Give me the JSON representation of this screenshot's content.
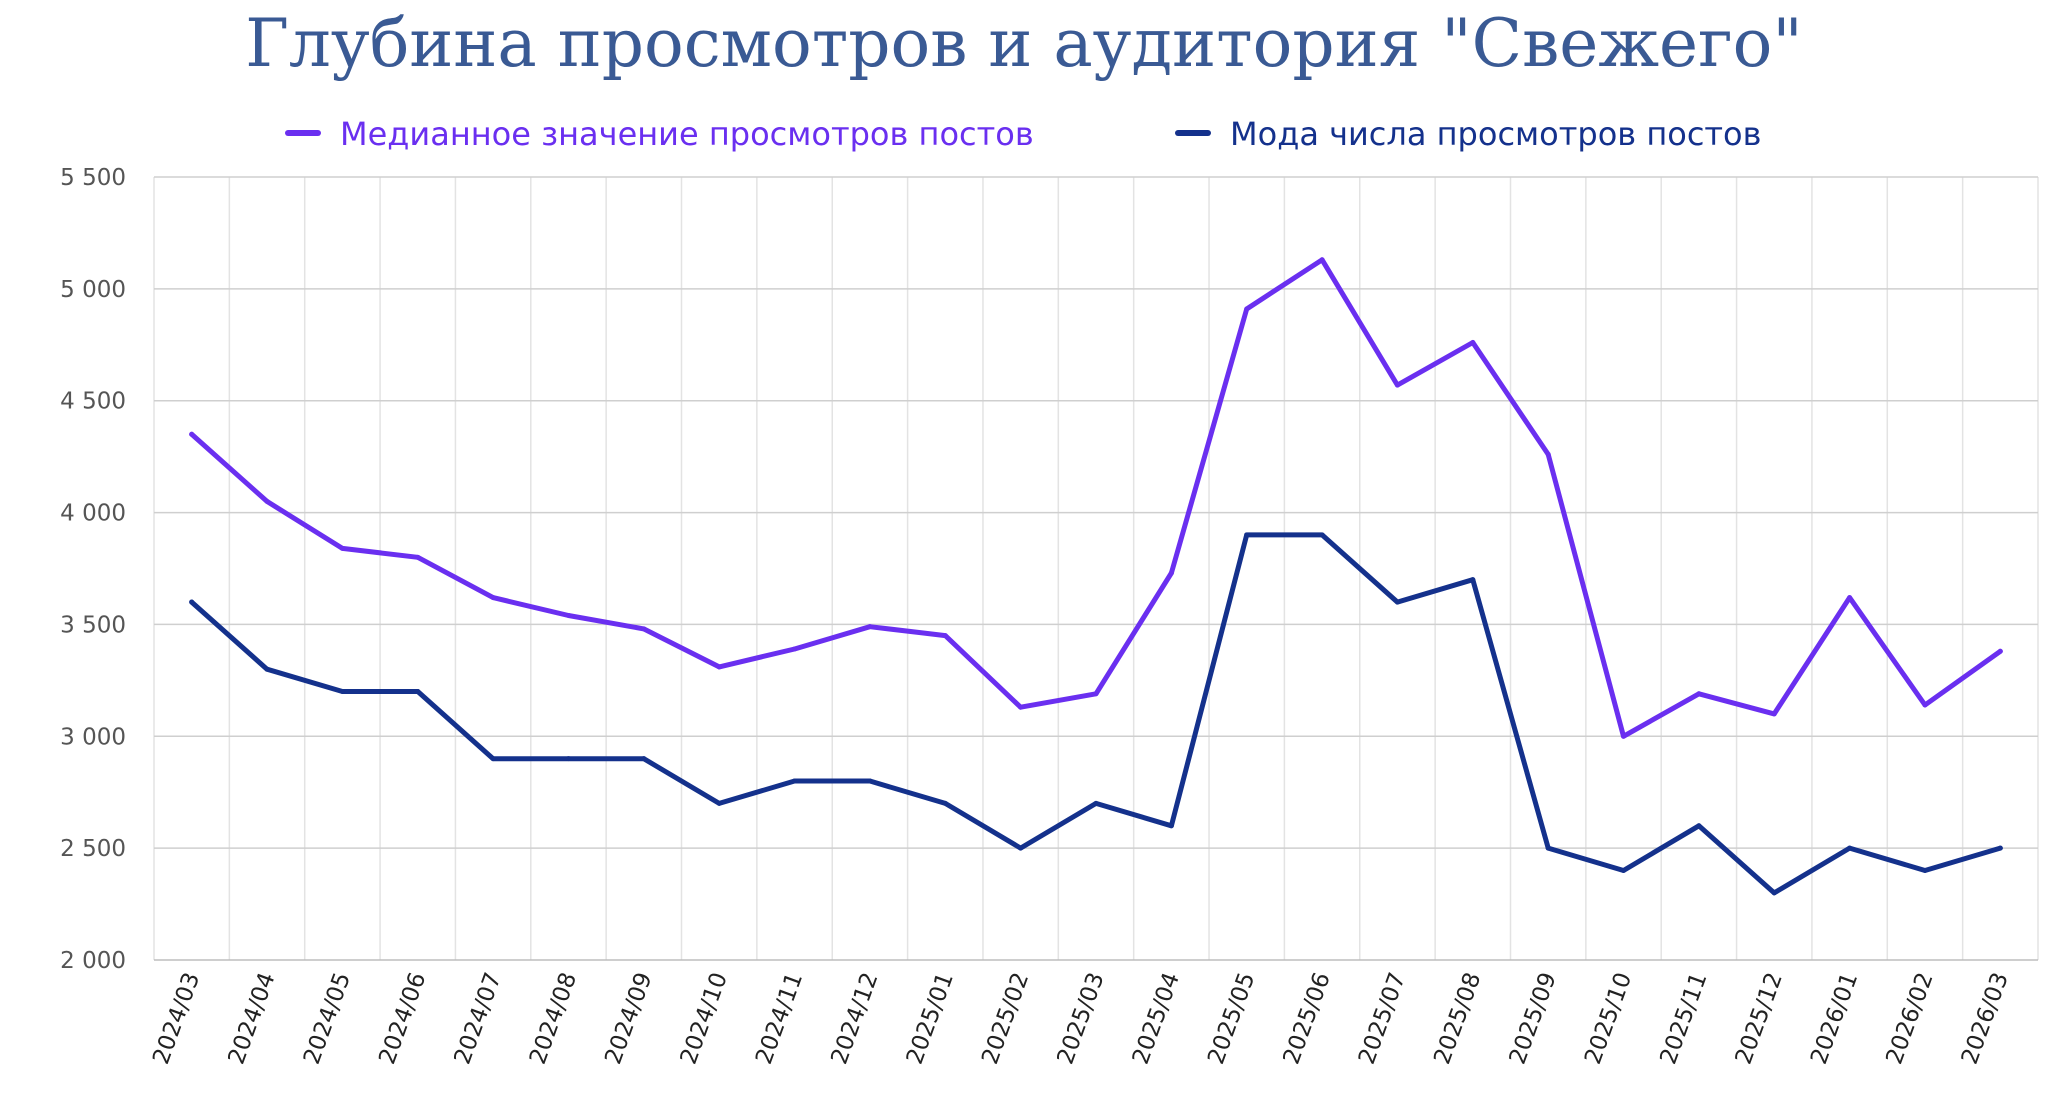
{
  "chart_data": {
    "type": "line",
    "title": "Глубина просмотров и аудитория \"Свежего\"",
    "xlabel": "",
    "ylabel": "",
    "categories": [
      "2024/03",
      "2024/04",
      "2024/05",
      "2024/06",
      "2024/07",
      "2024/08",
      "2024/09",
      "2024/10",
      "2024/11",
      "2024/12",
      "2025/01",
      "2025/02",
      "2025/03",
      "2025/04",
      "2025/05",
      "2025/06",
      "2025/07",
      "2025/08",
      "2025/09",
      "2025/10",
      "2025/11",
      "2025/12",
      "2026/01",
      "2026/02",
      "2026/03"
    ],
    "series": [
      {
        "name": "Медианное значение просмотров постов",
        "color": "#6a2ff0",
        "values": [
          4350,
          4050,
          3840,
          3800,
          3620,
          3540,
          3480,
          3310,
          3390,
          3490,
          3450,
          3130,
          3190,
          3730,
          4910,
          5130,
          4570,
          4760,
          4260,
          3000,
          3190,
          3100,
          3620,
          3140,
          3380
        ]
      },
      {
        "name": "Мода числа просмотров постов",
        "color": "#14318c",
        "values": [
          3600,
          3300,
          3200,
          3200,
          2900,
          2900,
          2900,
          2700,
          2800,
          2800,
          2700,
          2500,
          2700,
          2600,
          3900,
          3900,
          3600,
          3700,
          2500,
          2400,
          2600,
          2300,
          2500,
          2400,
          2500
        ]
      }
    ],
    "ylim": [
      2000,
      5500
    ],
    "yticks": [
      2000,
      2500,
      3000,
      3500,
      4000,
      4500,
      5000,
      5500
    ],
    "ytick_labels": [
      "2 000",
      "2 500",
      "3 000",
      "3 500",
      "4 000",
      "4 500",
      "5 000",
      "5 500"
    ],
    "grid": true,
    "legend_position": "top"
  }
}
